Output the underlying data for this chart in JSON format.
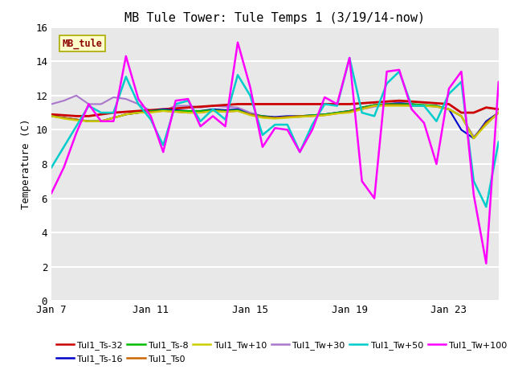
{
  "title": "MB Tule Tower: Tule Temps 1 (3/19/14-now)",
  "ylabel": "Temperature (C)",
  "ylim": [
    0,
    16
  ],
  "yticks": [
    0,
    2,
    4,
    6,
    8,
    10,
    12,
    14,
    16
  ],
  "xtick_labels": [
    "Jan 7",
    "Jan 11",
    "Jan 15",
    "Jan 19",
    "Jan 23"
  ],
  "xtick_positions": [
    0,
    8,
    16,
    24,
    32
  ],
  "xlim": [
    0,
    36
  ],
  "bg_color": "#e8e8e8",
  "fig_color": "#ffffff",
  "watermark_text": "MB_tule",
  "series": [
    {
      "label": "Tul1_Ts-32",
      "color": "#cc0000",
      "lw": 2.0,
      "zorder": 4,
      "y": [
        10.9,
        10.85,
        10.8,
        10.8,
        10.9,
        11.0,
        11.05,
        11.1,
        11.15,
        11.2,
        11.25,
        11.3,
        11.35,
        11.4,
        11.45,
        11.5,
        11.5,
        11.5,
        11.5,
        11.5,
        11.5,
        11.5,
        11.5,
        11.5,
        11.5,
        11.55,
        11.6,
        11.65,
        11.7,
        11.65,
        11.6,
        11.55,
        11.5,
        11.0,
        11.0,
        11.3,
        11.2
      ]
    },
    {
      "label": "Tul1_Ts-16",
      "color": "#0000cc",
      "lw": 1.5,
      "zorder": 4,
      "y": [
        10.8,
        10.7,
        10.6,
        10.5,
        10.5,
        10.7,
        10.9,
        11.0,
        11.1,
        11.2,
        11.15,
        11.1,
        11.1,
        11.2,
        11.15,
        11.2,
        10.9,
        10.8,
        10.75,
        10.8,
        10.8,
        10.85,
        10.9,
        11.0,
        11.1,
        11.3,
        11.45,
        11.5,
        11.55,
        11.5,
        11.4,
        11.4,
        11.2,
        10.0,
        9.5,
        10.5,
        11.0
      ]
    },
    {
      "label": "Tul1_Ts-8",
      "color": "#00bb00",
      "lw": 1.5,
      "zorder": 4,
      "y": [
        10.8,
        10.7,
        10.6,
        10.5,
        10.5,
        10.7,
        10.9,
        11.0,
        11.1,
        11.15,
        11.1,
        11.1,
        11.1,
        11.15,
        11.1,
        11.15,
        10.9,
        10.8,
        10.7,
        10.75,
        10.8,
        10.85,
        10.9,
        11.0,
        11.1,
        11.3,
        11.45,
        11.5,
        11.5,
        11.5,
        11.45,
        11.4,
        11.2,
        10.8,
        9.5,
        10.4,
        11.0
      ]
    },
    {
      "label": "Tul1_Ts0",
      "color": "#cc6600",
      "lw": 1.5,
      "zorder": 4,
      "y": [
        10.8,
        10.7,
        10.6,
        10.5,
        10.5,
        10.7,
        10.9,
        11.0,
        11.05,
        11.1,
        11.05,
        11.0,
        11.0,
        11.1,
        11.05,
        11.1,
        10.9,
        10.75,
        10.7,
        10.75,
        10.8,
        10.8,
        10.85,
        10.95,
        11.05,
        11.25,
        11.4,
        11.45,
        11.45,
        11.4,
        11.4,
        11.35,
        11.2,
        10.8,
        9.5,
        10.4,
        11.0
      ]
    },
    {
      "label": "Tul1_Tw+10",
      "color": "#cccc00",
      "lw": 1.5,
      "zorder": 4,
      "y": [
        10.8,
        10.65,
        10.55,
        10.5,
        10.5,
        10.7,
        10.9,
        11.0,
        11.0,
        11.1,
        11.05,
        11.0,
        11.0,
        11.1,
        11.05,
        11.1,
        10.85,
        10.7,
        10.65,
        10.7,
        10.75,
        10.8,
        10.85,
        10.95,
        11.0,
        11.2,
        11.4,
        11.4,
        11.4,
        11.4,
        11.4,
        11.35,
        11.2,
        10.8,
        9.5,
        10.3,
        11.0
      ]
    },
    {
      "label": "Tul1_Tw+30",
      "color": "#aa77cc",
      "lw": 1.5,
      "zorder": 3,
      "y": [
        11.5,
        11.7,
        12.0,
        11.5,
        11.5,
        11.9,
        11.8,
        11.5,
        11.1,
        11.1,
        11.4,
        11.4,
        11.3,
        11.4,
        11.35,
        11.3,
        11.0,
        10.8,
        10.7,
        10.75,
        10.75,
        10.85,
        10.9,
        11.0,
        11.1,
        11.2,
        11.35,
        11.5,
        11.6,
        11.5,
        11.45,
        11.35,
        11.2,
        10.8,
        9.6,
        10.3,
        11.0
      ]
    },
    {
      "label": "Tul1_Tw+50",
      "color": "#00cccc",
      "lw": 1.8,
      "zorder": 5,
      "y": [
        7.8,
        9.0,
        10.2,
        11.4,
        11.0,
        11.0,
        13.1,
        11.5,
        10.6,
        9.1,
        11.5,
        11.7,
        10.5,
        11.2,
        10.6,
        13.2,
        12.0,
        9.7,
        10.3,
        10.3,
        8.7,
        10.3,
        11.5,
        11.4,
        14.2,
        11.0,
        10.8,
        12.7,
        13.4,
        11.4,
        11.4,
        10.5,
        12.1,
        12.8,
        7.0,
        5.5,
        9.3,
        8.3
      ]
    },
    {
      "label": "Tul1_Tw+100",
      "color": "#ff00ff",
      "lw": 1.8,
      "zorder": 6,
      "y": [
        6.3,
        7.8,
        9.8,
        11.5,
        10.5,
        10.5,
        14.3,
        11.8,
        10.8,
        8.7,
        11.7,
        11.8,
        10.2,
        10.8,
        10.2,
        15.1,
        12.5,
        9.0,
        10.1,
        10.0,
        8.7,
        10.0,
        11.9,
        11.5,
        14.2,
        7.0,
        6.0,
        13.4,
        13.5,
        11.2,
        10.4,
        8.0,
        12.4,
        13.4,
        6.2,
        2.2,
        12.8,
        12.9
      ]
    }
  ],
  "legend_order": [
    "Tul1_Ts-32",
    "Tul1_Ts-16",
    "Tul1_Ts-8",
    "Tul1_Ts0",
    "Tul1_Tw+10",
    "Tul1_Tw+30",
    "Tul1_Tw+50",
    "Tul1_Tw+100"
  ]
}
